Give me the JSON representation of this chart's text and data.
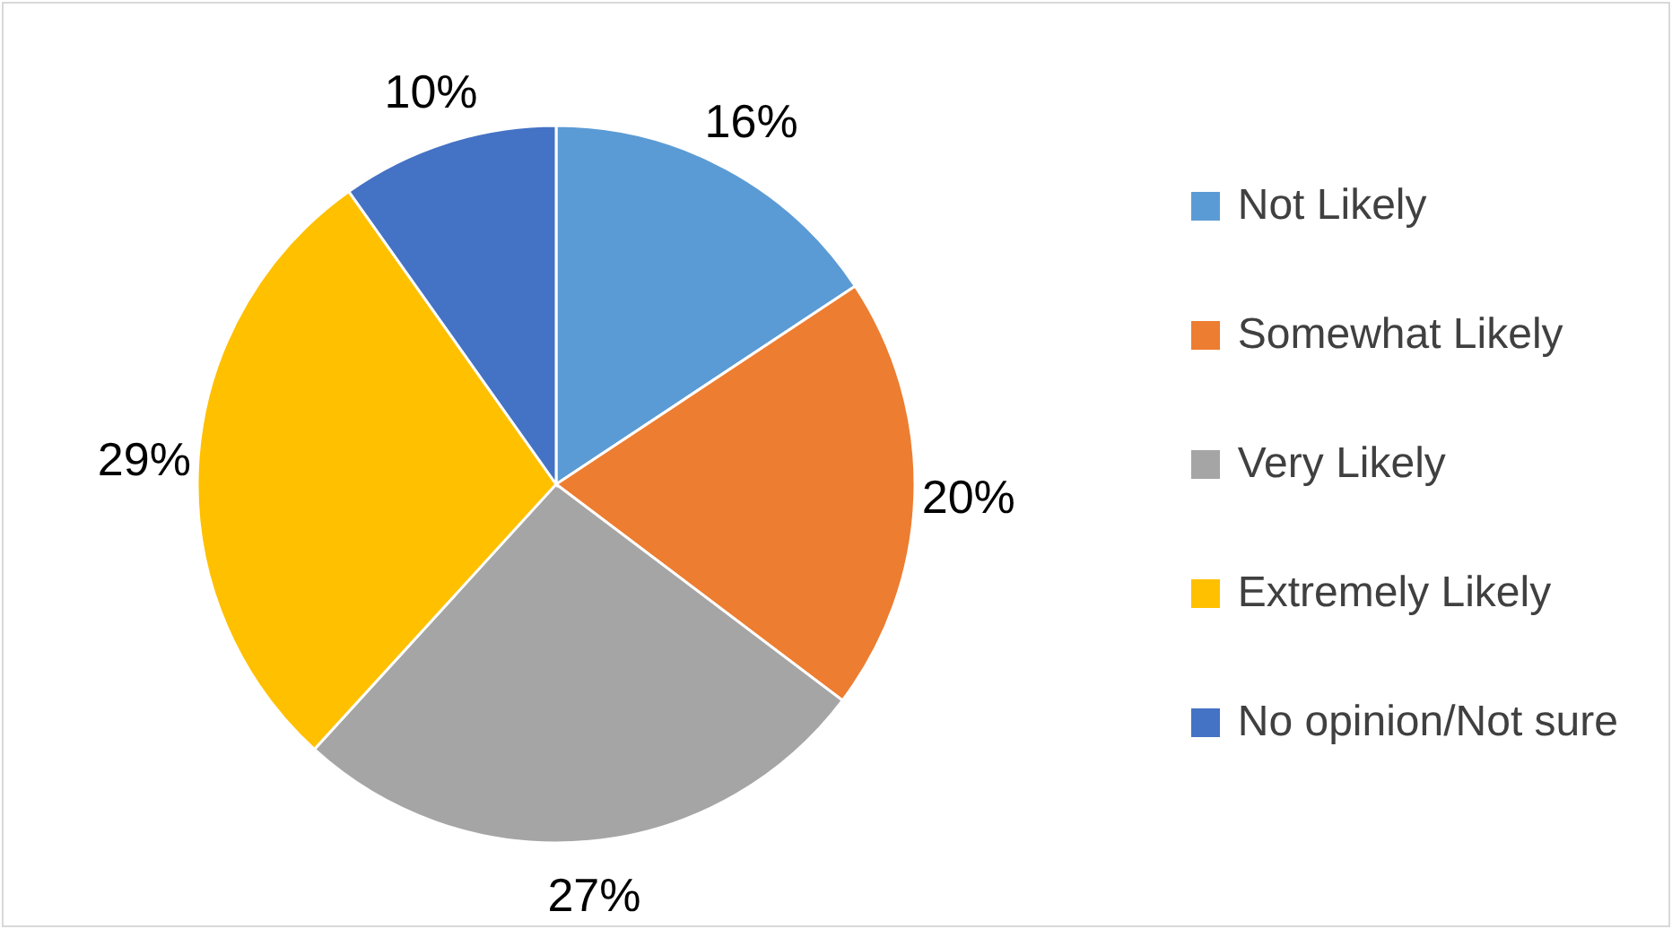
{
  "chart_data": {
    "type": "pie",
    "categories": [
      "Not Likely",
      "Somewhat Likely",
      "Very Likely",
      "Extremely Likely",
      "No opinion/Not sure"
    ],
    "values": [
      16,
      20,
      27,
      29,
      10
    ],
    "colors": [
      "#5b9bd5",
      "#ed7d31",
      "#a5a5a5",
      "#ffc000",
      "#4472c4"
    ],
    "value_labels": [
      "16%",
      "20%",
      "27%",
      "29%",
      "10%"
    ],
    "legend": "right"
  }
}
